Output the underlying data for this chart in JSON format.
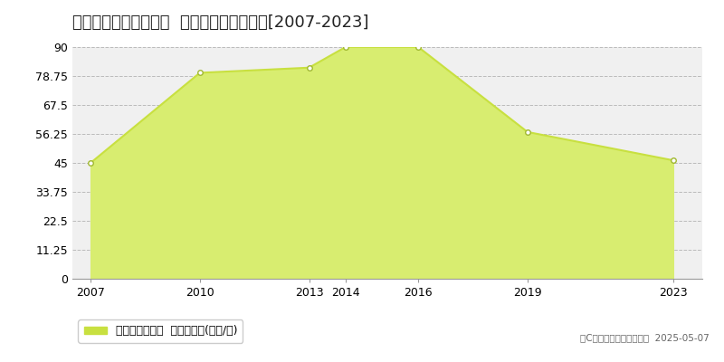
{
  "title": "仙台市若林区三百人町  マンション価格推移[2007-2023]",
  "years": [
    2007,
    2010,
    2013,
    2014,
    2016,
    2019,
    2023
  ],
  "values": [
    45.0,
    80.0,
    82.0,
    90.0,
    90.0,
    57.0,
    46.0
  ],
  "ylim": [
    0,
    90
  ],
  "yticks": [
    0,
    11.25,
    22.5,
    33.75,
    45,
    56.25,
    67.5,
    78.75,
    90
  ],
  "ytick_labels": [
    "0",
    "11.25",
    "22.5",
    "33.75",
    "45",
    "56.25",
    "67.5",
    "78.75",
    "90"
  ],
  "xticks": [
    2007,
    2010,
    2013,
    2014,
    2016,
    2019,
    2023
  ],
  "line_color": "#c8e040",
  "fill_color": "#d8ed70",
  "marker_edge_color": "#a0b830",
  "bg_color": "#f0f0f0",
  "grid_color": "#bbbbbb",
  "legend_label": "マンション価格  平均坪単価(万円/坪)",
  "legend_square_color": "#c8e040",
  "copyright_text": "（C）土地価格ドットコム  2025-05-07",
  "title_fontsize": 13,
  "tick_fontsize": 9,
  "legend_fontsize": 9
}
